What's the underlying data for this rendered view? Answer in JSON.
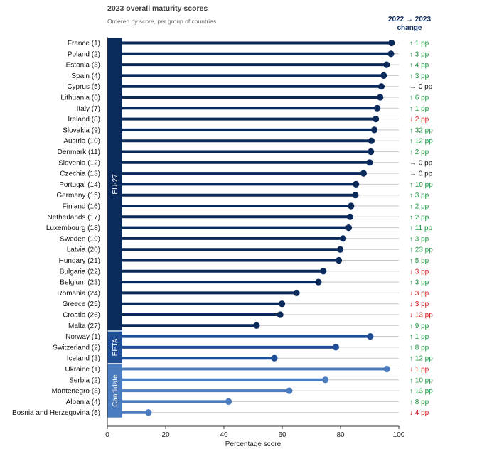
{
  "title": "2023 overall maturity scores",
  "subtitle": "Ordered by score, per group of countries",
  "change_header": {
    "line1": "2022 → 2023",
    "line2": "change"
  },
  "colors": {
    "eu": "#0b2a5c",
    "efta": "#1f4e96",
    "candidate": "#4a7cbf",
    "up": "#1a9641",
    "down": "#d7191c",
    "flat": "#111111"
  },
  "chart_data": {
    "type": "lollipop",
    "xlabel": "Percentage score",
    "xlim": [
      0,
      100
    ],
    "xticks": [
      0,
      20,
      40,
      60,
      80,
      100
    ],
    "groups": [
      {
        "name": "EU-27",
        "color": "#0b2a5c",
        "rows": [
          {
            "label": "France (1)",
            "value": 97.5,
            "change": "↑  1 pp",
            "dir": "up"
          },
          {
            "label": "Poland (2)",
            "value": 97.3,
            "change": "↑  3 pp",
            "dir": "up"
          },
          {
            "label": "Estonia (3)",
            "value": 95.8,
            "change": "↑  4 pp",
            "dir": "up"
          },
          {
            "label": "Spain (4)",
            "value": 94.8,
            "change": "↑  3 pp",
            "dir": "up"
          },
          {
            "label": "Cyprus (5)",
            "value": 94.0,
            "change": "→  0 pp",
            "dir": "flat"
          },
          {
            "label": "Lithuania (6)",
            "value": 93.6,
            "change": "↑  6 pp",
            "dir": "up"
          },
          {
            "label": "Italy (7)",
            "value": 92.6,
            "change": "↑  1 pp",
            "dir": "up"
          },
          {
            "label": "Ireland (8)",
            "value": 92.1,
            "change": "↓  2 pp",
            "dir": "down"
          },
          {
            "label": "Slovakia (9)",
            "value": 91.6,
            "change": "↑  32 pp",
            "dir": "up"
          },
          {
            "label": "Austria (10)",
            "value": 90.6,
            "change": "↑  12 pp",
            "dir": "up"
          },
          {
            "label": "Denmark (11)",
            "value": 90.4,
            "change": "↑  2 pp",
            "dir": "up"
          },
          {
            "label": "Slovenia (12)",
            "value": 90.0,
            "change": "→  0 pp",
            "dir": "flat"
          },
          {
            "label": "Czechia (13)",
            "value": 87.9,
            "change": "→  0 pp",
            "dir": "flat"
          },
          {
            "label": "Portugal (14)",
            "value": 85.3,
            "change": "↑  10 pp",
            "dir": "up"
          },
          {
            "label": "Germany (15)",
            "value": 85.1,
            "change": "↑  3 pp",
            "dir": "up"
          },
          {
            "label": "Finland (16)",
            "value": 83.6,
            "change": "↑  2 pp",
            "dir": "up"
          },
          {
            "label": "Netherlands (17)",
            "value": 83.3,
            "change": "↑  2 pp",
            "dir": "up"
          },
          {
            "label": "Luxembourg (18)",
            "value": 82.8,
            "change": "↑  11 pp",
            "dir": "up"
          },
          {
            "label": "Sweden (19)",
            "value": 80.9,
            "change": "↑  3 pp",
            "dir": "up"
          },
          {
            "label": "Latvia (20)",
            "value": 79.9,
            "change": "↑  23 pp",
            "dir": "up"
          },
          {
            "label": "Hungary (21)",
            "value": 79.4,
            "change": "↑  5 pp",
            "dir": "up"
          },
          {
            "label": "Bulgaria (22)",
            "value": 74.1,
            "change": "↓  3 pp",
            "dir": "down"
          },
          {
            "label": "Belgium (23)",
            "value": 72.4,
            "change": "↑  3 pp",
            "dir": "up"
          },
          {
            "label": "Romania (24)",
            "value": 64.9,
            "change": "↓  3 pp",
            "dir": "down"
          },
          {
            "label": "Greece (25)",
            "value": 59.9,
            "change": "↓  3 pp",
            "dir": "down"
          },
          {
            "label": "Croatia (26)",
            "value": 59.3,
            "change": "↓  13 pp",
            "dir": "down"
          },
          {
            "label": "Malta (27)",
            "value": 51.2,
            "change": "↑  9 pp",
            "dir": "up"
          }
        ]
      },
      {
        "name": "EFTA",
        "color": "#1f4e96",
        "rows": [
          {
            "label": "Norway (1)",
            "value": 90.2,
            "change": "↑  1 pp",
            "dir": "up"
          },
          {
            "label": "Switzerland (2)",
            "value": 78.4,
            "change": "↑  8 pp",
            "dir": "up"
          },
          {
            "label": "Iceland (3)",
            "value": 57.3,
            "change": "↑  12 pp",
            "dir": "up"
          }
        ]
      },
      {
        "name": "Candidate",
        "color": "#4a7cbf",
        "rows": [
          {
            "label": "Ukraine (1)",
            "value": 95.9,
            "change": "↓  1 pp",
            "dir": "down"
          },
          {
            "label": "Serbia (2)",
            "value": 74.8,
            "change": "↑  10 pp",
            "dir": "up"
          },
          {
            "label": "Montenegro (3)",
            "value": 62.4,
            "change": "↑  13 pp",
            "dir": "up"
          },
          {
            "label": "Albania (4)",
            "value": 41.6,
            "change": "↑  8 pp",
            "dir": "up"
          },
          {
            "label": "Bosnia and Herzegovina (5)",
            "value": 14.1,
            "change": "↓  4 pp",
            "dir": "down"
          }
        ]
      }
    ]
  }
}
